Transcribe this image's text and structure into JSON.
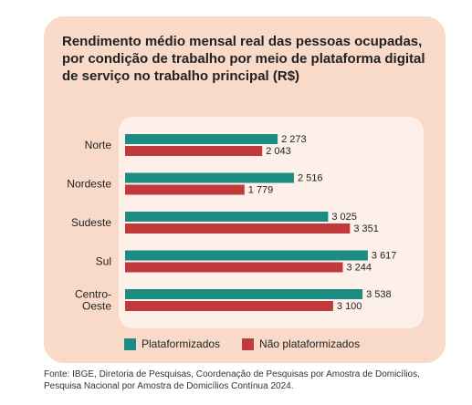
{
  "colors": {
    "plataformizados": "#1a8c82",
    "nao_plataformizados": "#c0393b"
  },
  "chart_data": {
    "type": "bar",
    "orientation": "horizontal",
    "title": "Rendimento médio mensal real das pessoas ocupadas, por condição de trabalho por meio de plataforma digital de serviço no trabalho principal (R$)",
    "categories": [
      "Norte",
      "Nordeste",
      "Sudeste",
      "Sul",
      "Centro-Oeste"
    ],
    "category_lines": [
      [
        "Norte"
      ],
      [
        "Nordeste"
      ],
      [
        "Sudeste"
      ],
      [
        "Sul"
      ],
      [
        "Centro-",
        "Oeste"
      ]
    ],
    "series": [
      {
        "name": "Plataformizados",
        "values": [
          2273,
          2516,
          3025,
          3617,
          3538
        ],
        "labels": [
          "2 273",
          "2 516",
          "3 025",
          "3 617",
          "3 538"
        ]
      },
      {
        "name": "Não plataformizados",
        "values": [
          2043,
          1779,
          3351,
          3244,
          3100
        ],
        "labels": [
          "2 043",
          "1 779",
          "3 351",
          "3 244",
          "3 100"
        ]
      }
    ],
    "xlim": [
      0,
      3700
    ],
    "grid": false,
    "legend_position": "bottom"
  },
  "source": "Fonte: IBGE, Diretoria de Pesquisas, Coordenação de Pesquisas por Amostra de Domicílios, Pesquisa Nacional por Amostra de Domicílios Contínua 2024."
}
